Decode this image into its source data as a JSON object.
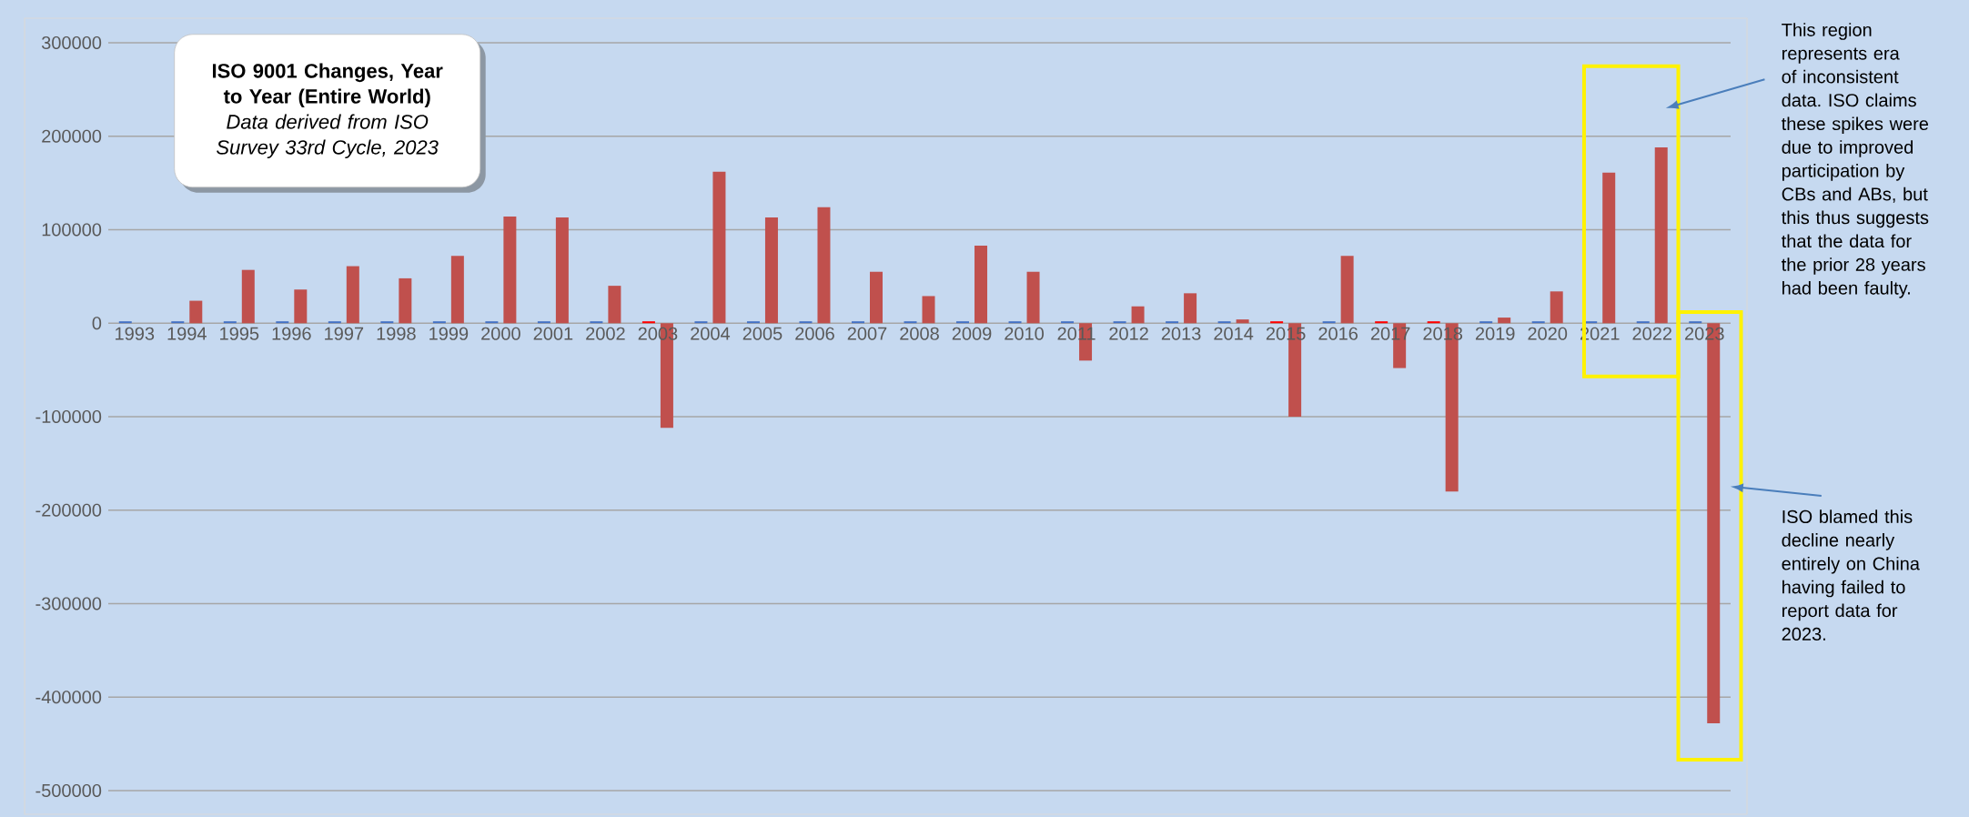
{
  "chart_data": {
    "type": "bar",
    "title": "ISO 9001 Changes, Year to Year (Entire World)",
    "subtitle": "Data derived from ISO Survey 33rd Cycle, 2023",
    "categories": [
      "1993",
      "1994",
      "1995",
      "1996",
      "1997",
      "1998",
      "1999",
      "2000",
      "2001",
      "2002",
      "2003",
      "2004",
      "2005",
      "2006",
      "2007",
      "2008",
      "2009",
      "2010",
      "2011",
      "2012",
      "2013",
      "2014",
      "2015",
      "2016",
      "2017",
      "2018",
      "2019",
      "2020",
      "2021",
      "2022",
      "2023"
    ],
    "series": [
      {
        "color": "#4472c4",
        "colors": [
          "#4472c4",
          "#4472c4",
          "#4472c4",
          "#4472c4",
          "#4472c4",
          "#4472c4",
          "#4472c4",
          "#4472c4",
          "#4472c4",
          "#4472c4",
          "#ff0000",
          "#4472c4",
          "#4472c4",
          "#4472c4",
          "#4472c4",
          "#4472c4",
          "#4472c4",
          "#4472c4",
          "#4472c4",
          "#4472c4",
          "#4472c4",
          "#4472c4",
          "#ff0000",
          "#4472c4",
          "#ff0000",
          "#ff0000",
          "#4472c4",
          "#4472c4",
          "#4472c4",
          "#4472c4",
          "#4472c4"
        ],
        "values": [
          2000,
          2000,
          2000,
          2000,
          2000,
          2000,
          2000,
          2000,
          2000,
          2000,
          2000,
          2000,
          2000,
          2000,
          2000,
          2000,
          2000,
          2000,
          2000,
          2000,
          2000,
          2000,
          2000,
          2000,
          2000,
          2000,
          2000,
          2000,
          2000,
          2000,
          2000
        ]
      },
      {
        "color": "#c0504d",
        "values": [
          null,
          24000,
          57000,
          36000,
          61000,
          48000,
          72000,
          114000,
          113000,
          40000,
          -112000,
          162000,
          113000,
          124000,
          55000,
          29000,
          83000,
          55000,
          -40000,
          18000,
          32000,
          4000,
          -100000,
          72000,
          -48000,
          -180000,
          6000,
          34000,
          161000,
          188000,
          -428000
        ]
      }
    ],
    "ylim": [
      -500000,
      300000
    ],
    "yticks": [
      -500000,
      -400000,
      -300000,
      -200000,
      -100000,
      0,
      100000,
      200000,
      300000
    ],
    "grid": "y",
    "annotations": [
      "This region represents era of inconsistent data. ISO claims these spikes were due to improved participation by CBs and ABs, but this thus suggests that the data for the prior 28 years had been faulty.",
      "ISO blamed this decline nearly entirely on China having failed to report data for 2023."
    ]
  }
}
